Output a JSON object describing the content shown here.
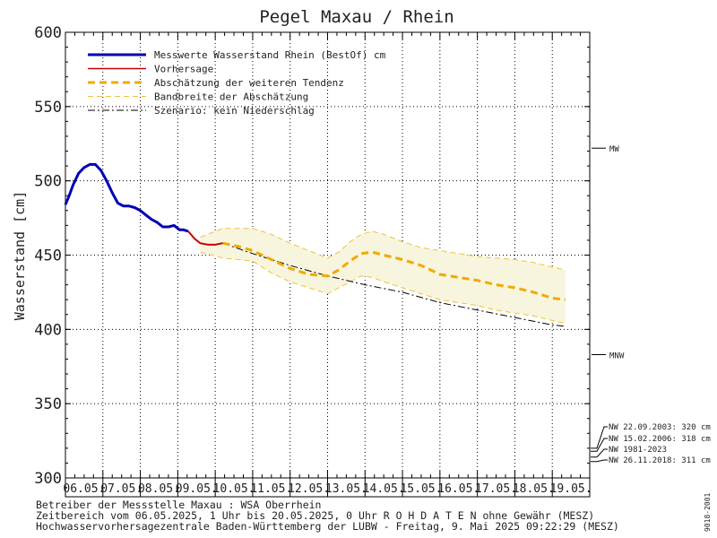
{
  "chart_data": {
    "type": "line",
    "title": "Pegel Maxau / Rhein",
    "ylabel": "Wasserstand [cm]",
    "ylim": [
      300,
      600
    ],
    "yticks": [
      300,
      350,
      400,
      450,
      500,
      550,
      600
    ],
    "xlim": [
      0,
      14
    ],
    "categories": [
      "06.05.",
      "07.05.",
      "08.05.",
      "09.05.",
      "10.05.",
      "11.05.",
      "12.05.",
      "13.05.",
      "14.05.",
      "15.05.",
      "16.05.",
      "17.05.",
      "18.05.",
      "19.05."
    ],
    "grid": true,
    "legend_position": "top-left",
    "legend": [
      {
        "label": "Messwerte Wasserstand Rhein (BestOf)   cm",
        "style": "measured"
      },
      {
        "label": "Vorhersage",
        "style": "forecast"
      },
      {
        "label": "Abschätzung der weiteren Tendenz",
        "style": "tendency"
      },
      {
        "label": "Bandbreite der Abschätzung",
        "style": "band"
      },
      {
        "label": "Szenario: kein Niederschlag",
        "style": "scenario"
      }
    ],
    "series": [
      {
        "name": "Messwerte Wasserstand Rhein (BestOf)   cm",
        "color": "#0000b4",
        "x": [
          0,
          0.1,
          0.2,
          0.35,
          0.5,
          0.65,
          0.8,
          0.95,
          1.1,
          1.25,
          1.4,
          1.55,
          1.7,
          1.85,
          2.0,
          2.15,
          2.3,
          2.45,
          2.6,
          2.75,
          2.9,
          3.05,
          3.15,
          3.28
        ],
        "y": [
          484,
          490,
          497,
          505,
          509,
          511,
          511,
          507,
          500,
          492,
          485,
          483,
          483,
          482,
          480,
          477,
          474,
          472,
          469,
          469,
          470,
          467,
          467,
          466
        ]
      },
      {
        "name": "Vorhersage",
        "color": "#c80000",
        "x": [
          3.28,
          3.45,
          3.6,
          3.8,
          4.0,
          4.2
        ],
        "y": [
          466,
          461,
          458,
          457,
          457,
          458
        ]
      },
      {
        "name": "Abschätzung der weiteren Tendenz",
        "color": "#f0aa00",
        "x": [
          4.2,
          4.6,
          5.0,
          5.5,
          6.0,
          6.5,
          7.0,
          7.3,
          7.6,
          7.9,
          8.2,
          8.5,
          9.0,
          9.5,
          10.0,
          10.5,
          11.0,
          11.5,
          12.0,
          12.5,
          13.0,
          13.35
        ],
        "y": [
          458,
          456,
          453,
          447,
          441,
          437,
          436,
          440,
          446,
          451,
          452,
          450,
          447,
          443,
          437,
          435,
          433,
          430,
          428,
          425,
          421,
          420
        ]
      },
      {
        "name": "Bandbreite der Abschätzung",
        "color": "#f0c040",
        "x": [
          3.6,
          4.2,
          5.0,
          5.5,
          6.0,
          6.5,
          7.0,
          7.3,
          7.6,
          7.9,
          8.2,
          8.5,
          9.0,
          9.5,
          10.0,
          10.5,
          11.0,
          11.5,
          12.0,
          12.5,
          13.0,
          13.35
        ],
        "upper": [
          462,
          468,
          468,
          464,
          458,
          453,
          448,
          452,
          459,
          464,
          466,
          464,
          459,
          455,
          453,
          451,
          449,
          448,
          447,
          445,
          442,
          440
        ],
        "lower": [
          452,
          448,
          446,
          438,
          432,
          428,
          424,
          428,
          432,
          436,
          435,
          432,
          428,
          424,
          420,
          418,
          416,
          413,
          411,
          409,
          406,
          404
        ]
      },
      {
        "name": "Szenario: kein Niederschlag",
        "color": "#000000",
        "x": [
          4.2,
          5.0,
          6.0,
          7.0,
          8.0,
          9.0,
          10.0,
          11.0,
          12.0,
          13.0,
          13.35
        ],
        "y": [
          458,
          451,
          443,
          436,
          430,
          425,
          418,
          413,
          408,
          403,
          402
        ]
      }
    ],
    "reference_marks": [
      {
        "label": "MW",
        "value": 522
      },
      {
        "label": "MNW",
        "value": 383
      }
    ],
    "low_water_marks": [
      {
        "label": "NW 22.09.2003: 320 cm",
        "value": 320
      },
      {
        "label": "NW 15.02.2006: 318 cm",
        "value": 318
      },
      {
        "label": "NW 1981-2023",
        "value": 314
      },
      {
        "label": "NW 26.11.2018: 311 cm",
        "value": 311
      }
    ],
    "footer": [
      "Betreiber der Messstelle Maxau : WSA Oberrhein",
      "Zeitbereich vom 06.05.2025, 1 Uhr bis 20.05.2025, 0 Uhr   R O H D A T E N ohne Gewähr (MESZ)",
      "Hochwasservorhersagezentrale Baden-Württemberg der LUBW - Freitag, 9. Mai 2025 09:22:29 (MESZ)"
    ],
    "side_code": "9018-2001"
  }
}
